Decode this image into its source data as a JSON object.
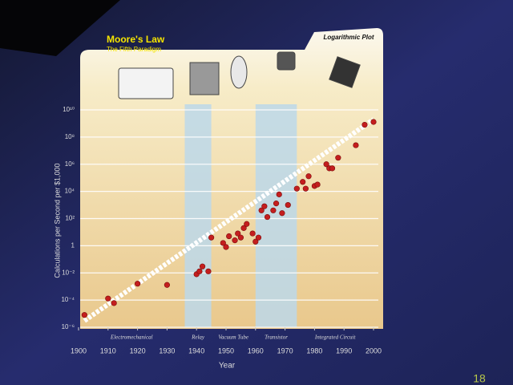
{
  "chart_data": {
    "type": "scatter",
    "title": "Moore's Law",
    "subtitle": "The Fifth Paradigm",
    "plot_label": "Logarithmic Plot",
    "x_label": "Year",
    "y_label": "Calculations per Second per $1,000",
    "log_y": true,
    "grid": true,
    "color": "#c41e1e",
    "x": [
      1902,
      1910,
      1912,
      1920,
      1930,
      1940,
      1941,
      1942,
      1944,
      1945,
      1949,
      1950,
      1951,
      1953,
      1954,
      1955,
      1956,
      1957,
      1959,
      1960,
      1961,
      1962,
      1963,
      1964,
      1966,
      1967,
      1968,
      1969,
      1971,
      1974,
      1976,
      1977,
      1978,
      1980,
      1981,
      1984,
      1985,
      1986,
      1988,
      1994,
      1997,
      2000
    ],
    "values": [
      8e-06,
      0.00013,
      6e-05,
      0.0016,
      0.0013,
      0.008,
      0.013,
      0.03,
      0.013,
      4,
      1.6,
      0.8,
      5,
      2.5,
      8,
      4,
      20,
      40,
      8,
      2,
      4,
      400,
      800,
      130,
      400,
      1300,
      6000,
      250,
      1000,
      16000,
      50000,
      16000,
      130000,
      25000,
      32000,
      1000000,
      500000,
      500000,
      3000000,
      25000000,
      800000000,
      1300000000
    ],
    "trend": {
      "x": [
        1902,
        2000
      ],
      "values": [
        3e-06,
        2000000000.0
      ]
    },
    "eras": [
      {
        "label": "Electromechanical",
        "start": 1900,
        "end": 1936,
        "shaded": false
      },
      {
        "label": "Relay",
        "start": 1936,
        "end": 1945,
        "shaded": true
      },
      {
        "label": "Vacuum Tube",
        "start": 1945,
        "end": 1960,
        "shaded": false
      },
      {
        "label": "Transistor",
        "start": 1960,
        "end": 1974,
        "shaded": true
      },
      {
        "label": "Integrated Circuit",
        "start": 1974,
        "end": 2000,
        "shaded": false
      }
    ],
    "xlim": [
      1900,
      2000
    ],
    "xticks": [
      1900,
      1910,
      1920,
      1930,
      1940,
      1950,
      1960,
      1970,
      1980,
      1990,
      2000
    ],
    "ylim": [
      1e-06,
      10000000000.0
    ],
    "yticks": [
      {
        "value": 1e-06,
        "label": "10⁻⁶"
      },
      {
        "value": 0.0001,
        "label": "10⁻⁴"
      },
      {
        "value": 0.01,
        "label": "10⁻²"
      },
      1,
      {
        "value": 100,
        "label": "10²"
      },
      {
        "value": 10000,
        "label": "10⁴"
      },
      {
        "value": 1000000,
        "label": "10⁶"
      },
      {
        "value": 100000000,
        "label": "10⁸"
      },
      {
        "value": 10000000000,
        "label": "10¹⁰"
      }
    ],
    "slide_number": "18"
  }
}
